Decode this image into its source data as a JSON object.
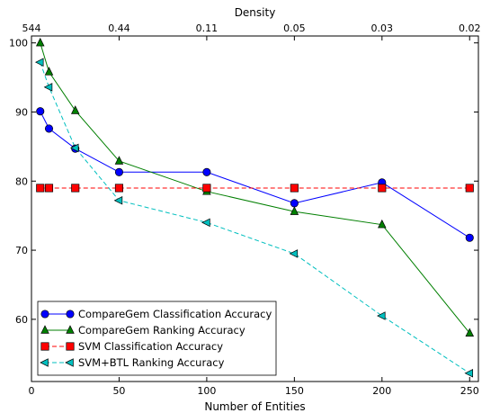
{
  "chart_data": {
    "type": "line",
    "xlabel": "Number of Entities",
    "top_axis_label": "Density",
    "x": [
      5,
      10,
      25,
      50,
      100,
      150,
      200,
      250
    ],
    "xlim": [
      0,
      255
    ],
    "ylim": [
      51,
      101
    ],
    "x_ticks": [
      0,
      50,
      100,
      150,
      200,
      250
    ],
    "y_ticks": [
      60,
      70,
      80,
      90,
      100
    ],
    "top_ticks": [
      {
        "x": 0,
        "label": "544"
      },
      {
        "x": 50,
        "label": "0.44"
      },
      {
        "x": 100,
        "label": "0.11"
      },
      {
        "x": 150,
        "label": "0.05"
      },
      {
        "x": 200,
        "label": "0.03"
      },
      {
        "x": 250,
        "label": "0.02"
      }
    ],
    "grid": false,
    "legend_position": "bottom-left",
    "series": [
      {
        "name": "CompareGem Classification Accuracy",
        "color": "#0000ff",
        "linestyle": "solid",
        "marker": "circle",
        "values": [
          90.1,
          87.6,
          84.7,
          81.3,
          81.3,
          76.8,
          79.8,
          71.8
        ]
      },
      {
        "name": "CompareGem Ranking Accuracy",
        "color": "#007f00",
        "linestyle": "solid",
        "marker": "triangle-up",
        "values": [
          100.0,
          95.8,
          90.2,
          82.9,
          78.5,
          75.6,
          73.7,
          58.0
        ]
      },
      {
        "name": "SVM Classification Accuracy",
        "color": "#ff0000",
        "linestyle": "dashed",
        "marker": "square",
        "values": [
          79.0,
          79.0,
          79.0,
          79.0,
          79.0,
          79.0,
          79.0,
          79.0
        ]
      },
      {
        "name": "SVM+BTL Ranking Accuracy",
        "color": "#00bfbf",
        "linestyle": "dashed",
        "marker": "triangle-left",
        "values": [
          97.2,
          93.6,
          84.8,
          77.2,
          74.0,
          69.5,
          60.5,
          52.2
        ]
      }
    ]
  }
}
